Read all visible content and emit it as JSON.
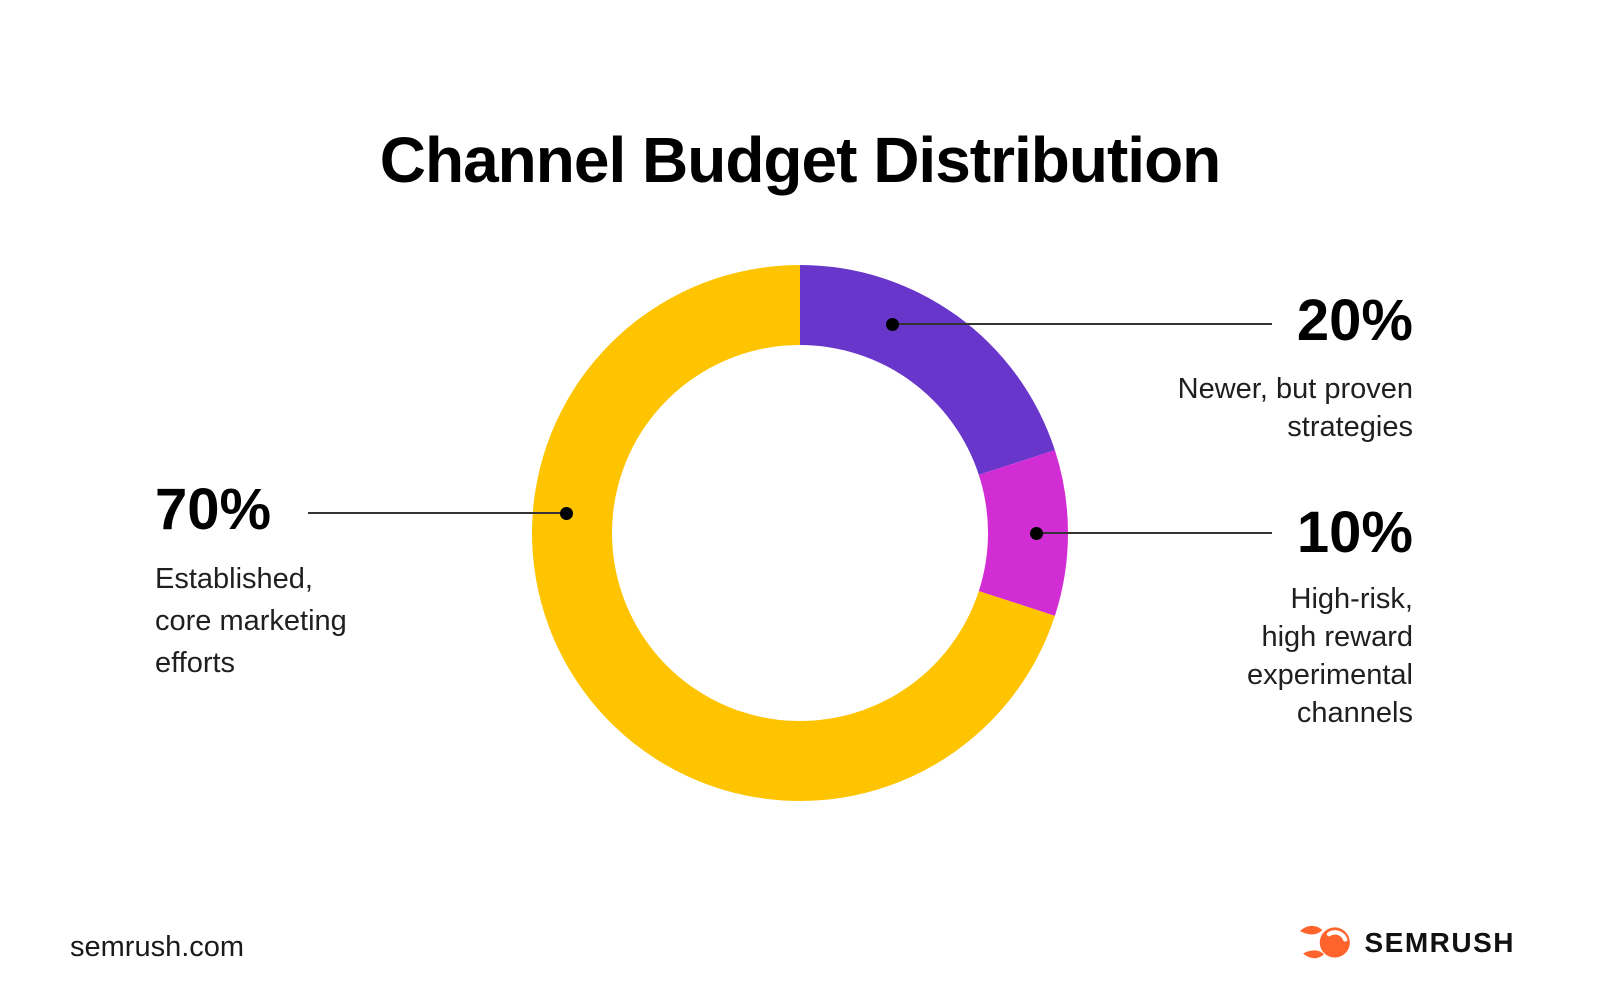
{
  "title": "Channel Budget Distribution",
  "chart_data": {
    "type": "pie",
    "subtype": "donut",
    "title": "Channel Budget Distribution",
    "start_angle_deg": 0,
    "direction": "clockwise",
    "inner_radius_ratio": 0.7,
    "segments": [
      {
        "label": "Newer, but proven strategies",
        "value": 20,
        "display": "20%",
        "color": "#6936CB"
      },
      {
        "label": "High-risk, high reward experimental channels",
        "value": 10,
        "display": "10%",
        "color": "#D22CD4"
      },
      {
        "label": "Established, core marketing efforts",
        "value": 70,
        "display": "70%",
        "color": "#FFC400"
      }
    ]
  },
  "annotations": {
    "left": {
      "percent": "70%",
      "description": "Established,\ncore marketing\nefforts"
    },
    "top_right": {
      "percent": "20%",
      "description": "Newer, but proven\nstrategies"
    },
    "bottom_right": {
      "percent": "10%",
      "description": "High-risk,\nhigh reward\nexperimental\nchannels"
    }
  },
  "footer": {
    "website": "semrush.com",
    "brand": "SEMRUSH"
  },
  "colors": {
    "yellow": "#FFC400",
    "purple": "#6936CB",
    "magenta": "#D22CD4",
    "leader_line": "#333333",
    "leader_dot": "#000000",
    "logo_orange": "#FF642D",
    "background": "#FFFFFF",
    "text": "#000000"
  }
}
